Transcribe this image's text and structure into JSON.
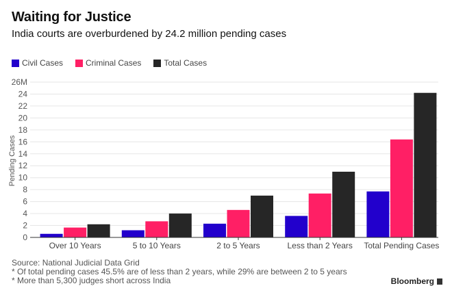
{
  "header": {
    "title": "Waiting for Justice",
    "subtitle": "India courts are overburdened by 24.2 million pending cases"
  },
  "chart_data": {
    "type": "bar",
    "title": "Waiting for Justice",
    "subtitle": "India courts are overburdened by 24.2 million pending cases",
    "xlabel": "",
    "ylabel": "Pending Cases",
    "ylim": [
      0,
      26
    ],
    "yticks": [
      0,
      2,
      4,
      6,
      8,
      10,
      12,
      14,
      16,
      18,
      20,
      22,
      24,
      26
    ],
    "ytick_labels": [
      "0",
      "2",
      "4",
      "6",
      "8",
      "10",
      "12",
      "14",
      "16",
      "18",
      "20",
      "22",
      "24",
      "26M"
    ],
    "grid": true,
    "legend_position": "top-left",
    "categories": [
      "Over 10 Years",
      "5 to 10 Years",
      "2 to 5 Years",
      "Less than 2 Years",
      "Total Pending Cases"
    ],
    "series": [
      {
        "name": "Civil Cases",
        "color": "#2200cc",
        "values": [
          0.6,
          1.2,
          2.3,
          3.6,
          7.7
        ]
      },
      {
        "name": "Criminal Cases",
        "color": "#ff1f65",
        "values": [
          1.65,
          2.7,
          4.6,
          7.35,
          16.4
        ]
      },
      {
        "name": "Total Cases",
        "color": "#262626",
        "values": [
          2.2,
          4.0,
          7.0,
          11.0,
          24.2
        ]
      }
    ]
  },
  "footer": {
    "source": "Source: National Judicial Data Grid",
    "note1": "* Of total pending cases 45.5% are of less than 2 years, while 29% are between 2 to 5 years",
    "note2": "* More than 5,300 judges short across India",
    "brand": "Bloomberg"
  }
}
